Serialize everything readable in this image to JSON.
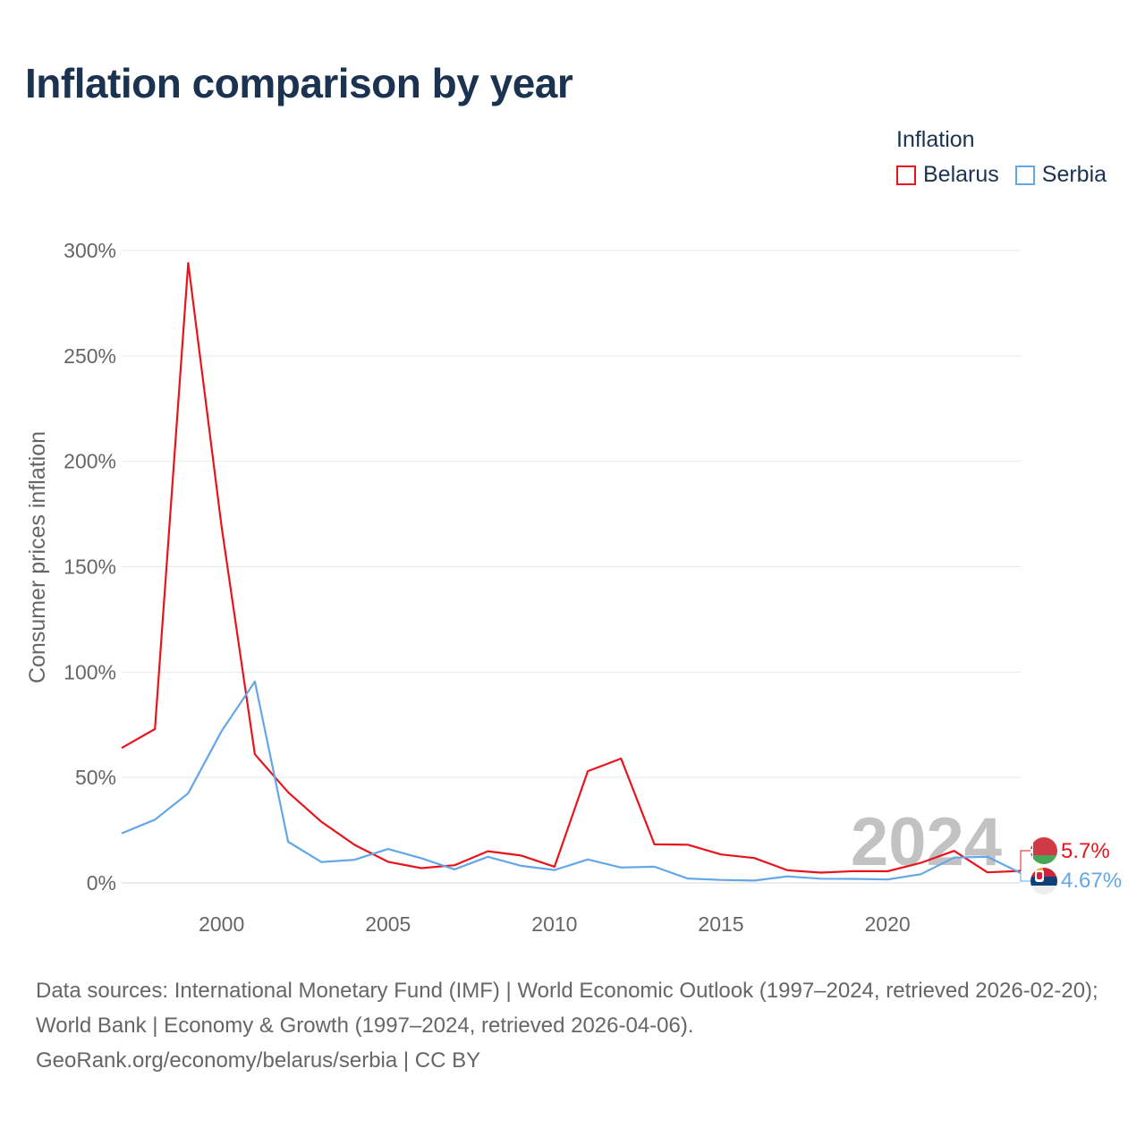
{
  "title": "Inflation comparison by year",
  "legend": {
    "title": "Inflation",
    "items": [
      {
        "label": "Belarus",
        "color": "#e8141b"
      },
      {
        "label": "Serbia",
        "color": "#63a7e8"
      }
    ]
  },
  "watermark_year": "2024",
  "end_labels": {
    "belarus": "5.7%",
    "serbia": "4.67%"
  },
  "source": {
    "line1": "Data sources: International Monetary Fund (IMF) | World Economic Outlook (1997–2024, retrieved 2026-02-20); World Bank | Economy & Growth (1997–2024, retrieved 2026-04-06).",
    "line2": "GeoRank.org/economy/belarus/serbia | CC BY"
  },
  "chart_data": {
    "type": "line",
    "title": "Inflation comparison by year",
    "xlabel": "",
    "ylabel": "Consumer prices inflation",
    "x": [
      1997,
      1998,
      1999,
      2000,
      2001,
      2002,
      2003,
      2004,
      2005,
      2006,
      2007,
      2008,
      2009,
      2010,
      2011,
      2012,
      2013,
      2014,
      2015,
      2016,
      2017,
      2018,
      2019,
      2020,
      2021,
      2022,
      2023,
      2024
    ],
    "xlim": [
      1997,
      2024
    ],
    "ylim": [
      0,
      300
    ],
    "x_ticks": [
      2000,
      2005,
      2010,
      2015,
      2020
    ],
    "y_ticks": [
      0,
      50,
      100,
      150,
      200,
      250,
      300
    ],
    "y_tick_labels": [
      "0%",
      "50%",
      "100%",
      "150%",
      "200%",
      "250%",
      "300%"
    ],
    "grid": true,
    "legend_position": "top-right",
    "series": [
      {
        "name": "Belarus",
        "color": "#e8141b",
        "values": [
          64,
          73,
          294,
          169,
          61,
          43,
          29,
          18,
          10,
          7,
          8.4,
          15,
          13,
          7.7,
          53,
          59,
          18.3,
          18.1,
          13.5,
          11.8,
          6,
          4.9,
          5.6,
          5.5,
          9.5,
          15.2,
          5,
          5.7
        ]
      },
      {
        "name": "Serbia",
        "color": "#63a7e8",
        "values": [
          23.5,
          30,
          42.5,
          72,
          95.5,
          19.5,
          9.9,
          11,
          16.1,
          11.7,
          6.4,
          12.4,
          8.1,
          6.1,
          11.1,
          7.3,
          7.7,
          2.1,
          1.4,
          1.1,
          3.1,
          2,
          1.9,
          1.6,
          4.1,
          12,
          12.4,
          4.67
        ]
      }
    ]
  }
}
